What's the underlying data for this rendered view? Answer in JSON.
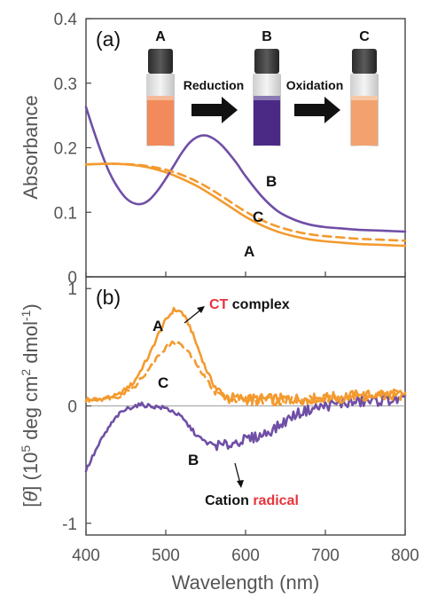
{
  "colors": {
    "orange": "#f39a2f",
    "purple": "#6f4fa6",
    "red": "#e8343c",
    "axis": "#444444",
    "zero_line": "#a0a0a0"
  },
  "figure": {
    "xlabel": "Wavelength (nm)",
    "x_ticks": [
      "400",
      "500",
      "600",
      "700",
      "800"
    ]
  },
  "panel_a": {
    "tag": "(a)",
    "ylabel": "Absorbance",
    "y_ticks": [
      "0",
      "0.1",
      "0.2",
      "0.3",
      "0.4"
    ],
    "curve_labels": {
      "A": "A",
      "B": "B",
      "C": "C"
    },
    "inset": {
      "vials": [
        {
          "label": "A",
          "liquid": "#f28a5b",
          "liquid_top": "#f6b99a"
        },
        {
          "label": "B",
          "liquid": "#4b2a86",
          "liquid_top": "#8b79b3"
        },
        {
          "label": "C",
          "liquid": "#f3a26f",
          "liquid_top": "#f7c8a6"
        }
      ],
      "arrows": [
        {
          "text": "Reduction"
        },
        {
          "text": "Oxidation"
        }
      ]
    }
  },
  "panel_b": {
    "tag": "(b)",
    "ylabel_parts": [
      "[",
      "θ",
      "] (10",
      "5",
      " deg cm",
      "2",
      " dmol",
      "-1",
      ")"
    ],
    "y_ticks": [
      "-1",
      "0",
      "1"
    ],
    "curve_labels": {
      "A": "A",
      "B": "B",
      "C": "C"
    },
    "annotation_ct": {
      "red": "CT",
      "black": " complex"
    },
    "annotation_cation": {
      "black": "Cation ",
      "red": "radical"
    }
  },
  "chart_data": [
    {
      "type": "line",
      "panel": "a",
      "xlabel": "Wavelength (nm)",
      "ylabel": "Absorbance",
      "xlim": [
        400,
        800
      ],
      "ylim": [
        0,
        0.4
      ],
      "series": [
        {
          "name": "A",
          "style": "solid",
          "color": "orange",
          "x": [
            400,
            420,
            440,
            460,
            480,
            500,
            520,
            540,
            560,
            580,
            600,
            620,
            640,
            660,
            680,
            700,
            720,
            740,
            760,
            780,
            800
          ],
          "y": [
            0.174,
            0.175,
            0.175,
            0.173,
            0.169,
            0.162,
            0.152,
            0.14,
            0.125,
            0.109,
            0.093,
            0.08,
            0.07,
            0.063,
            0.058,
            0.055,
            0.053,
            0.051,
            0.05,
            0.049,
            0.048
          ]
        },
        {
          "name": "B",
          "style": "solid",
          "color": "purple",
          "x": [
            400,
            410,
            420,
            430,
            440,
            450,
            460,
            470,
            480,
            490,
            500,
            510,
            520,
            530,
            540,
            550,
            560,
            570,
            580,
            590,
            600,
            620,
            640,
            660,
            680,
            700,
            720,
            740,
            760,
            780,
            800
          ],
          "y": [
            0.263,
            0.225,
            0.19,
            0.16,
            0.138,
            0.122,
            0.114,
            0.113,
            0.12,
            0.134,
            0.152,
            0.172,
            0.192,
            0.208,
            0.217,
            0.219,
            0.214,
            0.204,
            0.19,
            0.174,
            0.156,
            0.125,
            0.102,
            0.089,
            0.081,
            0.077,
            0.075,
            0.073,
            0.072,
            0.071,
            0.07
          ]
        },
        {
          "name": "C",
          "style": "dashed",
          "color": "orange",
          "x": [
            400,
            420,
            440,
            460,
            480,
            500,
            520,
            540,
            560,
            580,
            600,
            620,
            640,
            660,
            680,
            700,
            720,
            740,
            760,
            780,
            800
          ],
          "y": [
            0.174,
            0.175,
            0.175,
            0.174,
            0.171,
            0.166,
            0.158,
            0.147,
            0.133,
            0.117,
            0.101,
            0.088,
            0.078,
            0.071,
            0.066,
            0.063,
            0.061,
            0.059,
            0.058,
            0.057,
            0.056
          ]
        }
      ]
    },
    {
      "type": "line",
      "panel": "b",
      "xlabel": "Wavelength (nm)",
      "ylabel": "[θ] (10^5 deg cm^2 dmol^-1)",
      "xlim": [
        400,
        800
      ],
      "ylim": [
        -1.1,
        1.1
      ],
      "series": [
        {
          "name": "A",
          "style": "solid",
          "color": "orange",
          "x": [
            400,
            420,
            440,
            460,
            480,
            490,
            500,
            510,
            520,
            530,
            540,
            550,
            560,
            570,
            580,
            600,
            620,
            640,
            660,
            680,
            700,
            720,
            740,
            760,
            780,
            800
          ],
          "y": [
            0.05,
            0.06,
            0.09,
            0.2,
            0.44,
            0.6,
            0.73,
            0.82,
            0.8,
            0.68,
            0.5,
            0.32,
            0.18,
            0.1,
            0.07,
            0.06,
            0.06,
            0.06,
            0.06,
            0.06,
            0.07,
            0.08,
            0.09,
            0.09,
            0.1,
            0.1
          ]
        },
        {
          "name": "B",
          "style": "solid",
          "color": "purple",
          "x": [
            400,
            410,
            420,
            430,
            440,
            450,
            460,
            470,
            480,
            490,
            500,
            510,
            520,
            530,
            540,
            550,
            560,
            570,
            580,
            590,
            600,
            620,
            640,
            660,
            680,
            700,
            720,
            740,
            760,
            780,
            800
          ],
          "y": [
            -0.55,
            -0.41,
            -0.28,
            -0.17,
            -0.08,
            -0.03,
            0.0,
            0.01,
            0.0,
            -0.01,
            -0.02,
            -0.05,
            -0.1,
            -0.18,
            -0.26,
            -0.31,
            -0.33,
            -0.34,
            -0.33,
            -0.3,
            -0.29,
            -0.25,
            -0.18,
            -0.08,
            -0.03,
            0.0,
            0.02,
            0.03,
            0.04,
            0.05,
            0.05
          ]
        },
        {
          "name": "C",
          "style": "dashed",
          "color": "orange",
          "x": [
            400,
            420,
            440,
            460,
            480,
            490,
            500,
            510,
            520,
            530,
            540,
            550,
            560,
            570,
            580,
            600,
            620,
            640,
            660,
            680,
            700,
            720,
            740,
            760,
            780,
            800
          ],
          "y": [
            0.05,
            0.06,
            0.08,
            0.16,
            0.32,
            0.42,
            0.5,
            0.54,
            0.52,
            0.44,
            0.34,
            0.23,
            0.14,
            0.09,
            0.06,
            0.05,
            0.05,
            0.05,
            0.05,
            0.05,
            0.06,
            0.07,
            0.08,
            0.08,
            0.09,
            0.09
          ]
        }
      ]
    }
  ]
}
